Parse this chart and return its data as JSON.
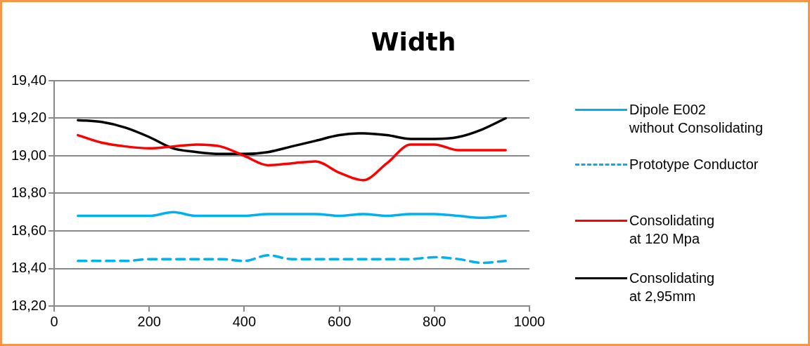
{
  "chart_data": {
    "type": "line",
    "title": "Width",
    "x": [
      50,
      100,
      150,
      200,
      250,
      300,
      350,
      400,
      450,
      500,
      550,
      600,
      650,
      700,
      750,
      800,
      850,
      900,
      950
    ],
    "xlim": [
      0,
      1000
    ],
    "xticks": [
      0,
      200,
      400,
      600,
      800,
      1000
    ],
    "ylim": [
      18.2,
      19.4
    ],
    "yticks": [
      {
        "value": 18.2,
        "label": "18,20"
      },
      {
        "value": 18.4,
        "label": "18,40"
      },
      {
        "value": 18.6,
        "label": "18,60"
      },
      {
        "value": 18.8,
        "label": "18,80"
      },
      {
        "value": 19.0,
        "label": "19,00"
      },
      {
        "value": 19.2,
        "label": "19,20"
      },
      {
        "value": 19.4,
        "label": "19,40"
      }
    ],
    "grid": "y",
    "legend": "right",
    "marker": "none",
    "series": [
      {
        "name": "Dipole E002\nwithout Consolidating",
        "color": "#00b0f0",
        "line_style": "solid",
        "values": [
          18.68,
          18.68,
          18.68,
          18.68,
          18.7,
          18.68,
          18.68,
          18.68,
          18.69,
          18.69,
          18.69,
          18.68,
          18.69,
          18.68,
          18.69,
          18.69,
          18.68,
          18.67,
          18.68
        ]
      },
      {
        "name": "Prototype Conductor",
        "color": "#00b0f0",
        "line_style": "dashed",
        "values": [
          18.44,
          18.44,
          18.44,
          18.45,
          18.45,
          18.45,
          18.45,
          18.44,
          18.47,
          18.45,
          18.45,
          18.45,
          18.45,
          18.45,
          18.45,
          18.46,
          18.45,
          18.43,
          18.44
        ]
      },
      {
        "name": "Consolidating\nat 120 Mpa",
        "color": "#ff0000",
        "line_style": "solid",
        "values": [
          19.11,
          19.07,
          19.05,
          19.04,
          19.05,
          19.06,
          19.05,
          19.0,
          18.95,
          18.96,
          18.97,
          18.91,
          18.87,
          18.96,
          19.06,
          19.06,
          19.03,
          19.03,
          19.03
        ]
      },
      {
        "name": "Consolidating\nat 2,95mm",
        "color": "#000000",
        "line_style": "solid",
        "values": [
          19.19,
          19.18,
          19.15,
          19.1,
          19.04,
          19.02,
          19.01,
          19.01,
          19.02,
          19.05,
          19.08,
          19.11,
          19.12,
          19.11,
          19.09,
          19.09,
          19.1,
          19.14,
          19.2
        ]
      }
    ]
  }
}
